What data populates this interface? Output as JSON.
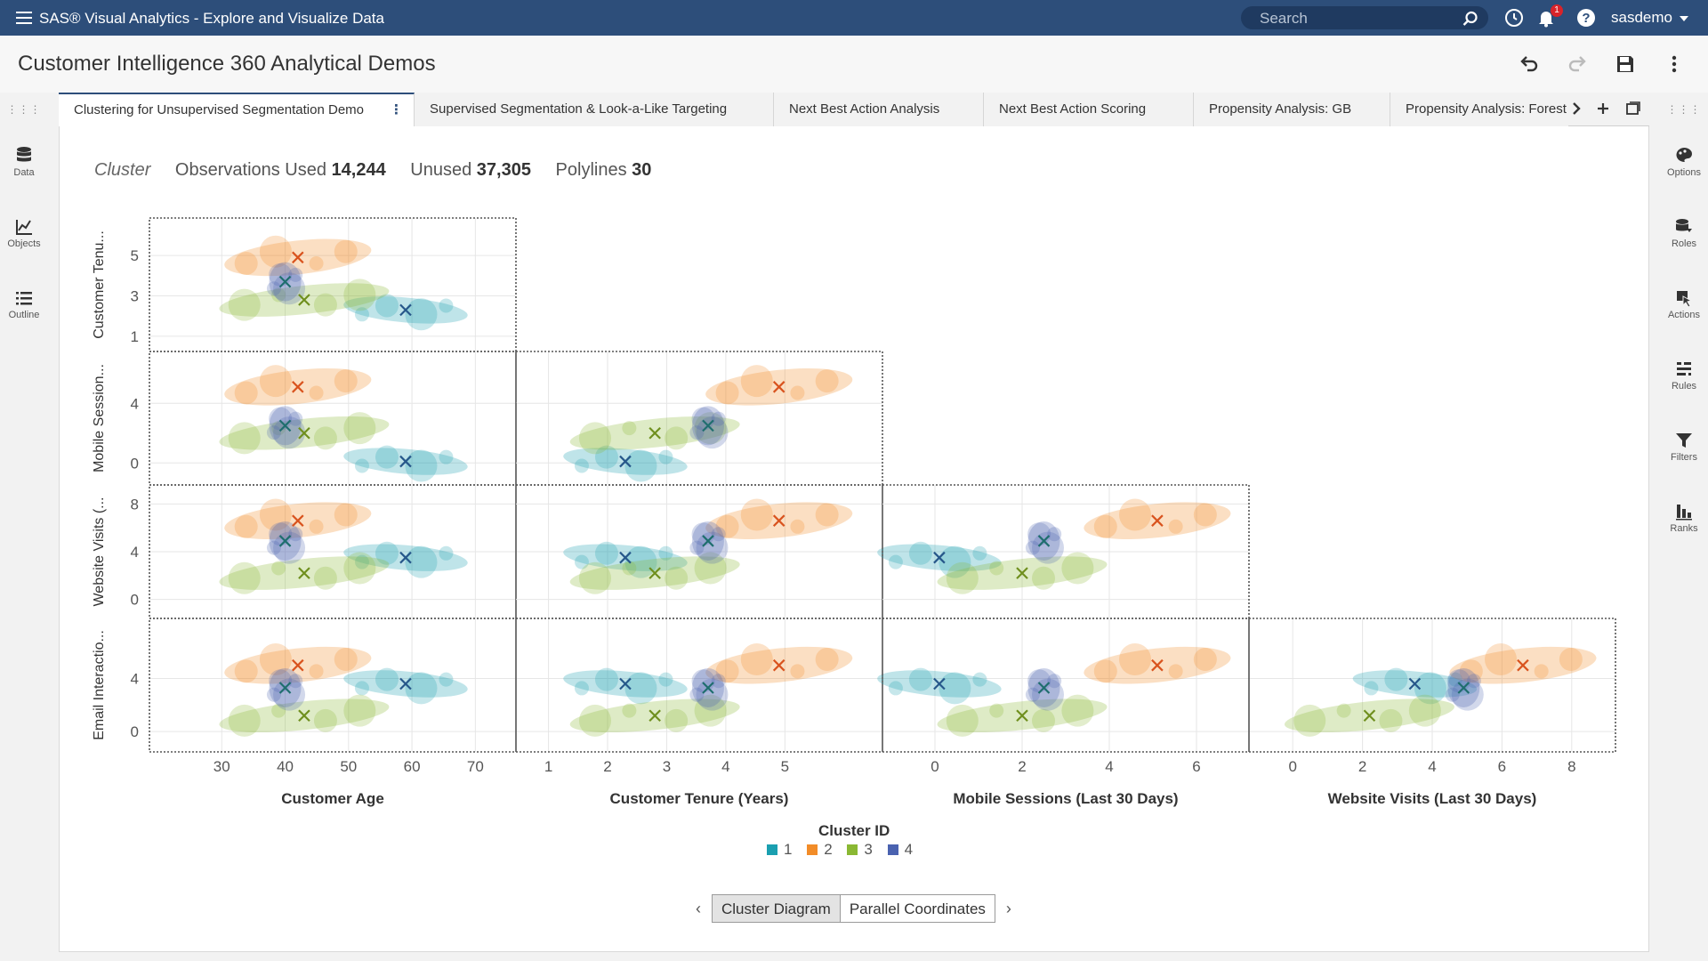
{
  "app": {
    "title": "SAS® Visual Analytics - Explore and Visualize Data",
    "search_placeholder": "Search",
    "notification_count": "1",
    "user": "sasdemo"
  },
  "report": {
    "title": "Customer Intelligence 360 Analytical Demos"
  },
  "left_rail": [
    {
      "label": "Data",
      "icon": "database-icon"
    },
    {
      "label": "Objects",
      "icon": "line-chart-icon"
    },
    {
      "label": "Outline",
      "icon": "list-icon"
    }
  ],
  "right_rail": [
    {
      "label": "Options",
      "icon": "palette-icon"
    },
    {
      "label": "Roles",
      "icon": "roles-icon"
    },
    {
      "label": "Actions",
      "icon": "cursor-icon"
    },
    {
      "label": "Rules",
      "icon": "rules-icon"
    },
    {
      "label": "Filters",
      "icon": "filter-icon"
    },
    {
      "label": "Ranks",
      "icon": "ranks-icon"
    }
  ],
  "tabs": [
    {
      "label": "Clustering for Unsupervised Segmentation Demo",
      "active": true
    },
    {
      "label": "Supervised Segmentation & Look-a-Like Targeting",
      "active": false
    },
    {
      "label": "Next Best Action Analysis",
      "active": false
    },
    {
      "label": "Next Best Action Scoring",
      "active": false
    },
    {
      "label": "Propensity Analysis: GB",
      "active": false
    },
    {
      "label": "Propensity Analysis: Forest",
      "active": false
    }
  ],
  "stats": {
    "label": "Cluster",
    "observations_used_label": "Observations Used",
    "observations_used": "14,244",
    "unused_label": "Unused",
    "unused": "37,305",
    "polylines_label": "Polylines",
    "polylines": "30"
  },
  "colors": {
    "cluster1": "#1a9fb0",
    "cluster2": "#f28c28",
    "cluster3": "#8ab833",
    "cluster4": "#4a62b0",
    "topbar": "#2d4e7a"
  },
  "chart_data": {
    "type": "scatter",
    "title": "",
    "variables": [
      {
        "name": "Customer Age",
        "short": "Customer Age",
        "range": [
          20,
          75
        ],
        "ticks": [
          30,
          40,
          50,
          60,
          70
        ]
      },
      {
        "name": "Customer Tenure (Years)",
        "short": "Customer Tenu...",
        "range": [
          0.6,
          6.5
        ],
        "ticks": [
          1,
          2,
          3,
          4,
          5
        ],
        "row_ticks": [
          1,
          3,
          5
        ]
      },
      {
        "name": "Mobile Sessions (Last 30 Days)",
        "short": "Mobile Session...",
        "range": [
          -1,
          7
        ],
        "ticks": [
          0,
          2,
          4,
          6
        ],
        "row_ticks": [
          0,
          4
        ]
      },
      {
        "name": "Website Visits (Last 30 Days)",
        "short": "Website Visits (...",
        "range": [
          -1,
          9
        ],
        "ticks": [
          0,
          2,
          4,
          6,
          8
        ],
        "row_ticks": [
          0,
          4,
          8
        ]
      },
      {
        "name": "Email Interactions",
        "short": "Email Interactio...",
        "range": [
          -1,
          8
        ],
        "row_ticks": [
          0,
          4
        ]
      }
    ],
    "legend": {
      "title": "Cluster ID",
      "items": [
        "1",
        "2",
        "3",
        "4"
      ],
      "placement": "bottom"
    },
    "clusters": [
      {
        "name": "1",
        "centroid": {
          "age": 59,
          "tenure": 2.3,
          "mobile": 0.1,
          "web": 3.5,
          "email": 3.6
        }
      },
      {
        "name": "2",
        "centroid": {
          "age": 42,
          "tenure": 4.9,
          "mobile": 5.1,
          "web": 6.6,
          "email": 5.0
        }
      },
      {
        "name": "3",
        "centroid": {
          "age": 43,
          "tenure": 2.8,
          "mobile": 2.0,
          "web": 2.2,
          "email": 1.2
        }
      },
      {
        "name": "4",
        "centroid": {
          "age": 40,
          "tenure": 3.7,
          "mobile": 2.5,
          "web": 4.9,
          "email": 3.3
        }
      }
    ]
  },
  "pager": {
    "options": [
      "Cluster Diagram",
      "Parallel Coordinates"
    ],
    "selected": "Cluster Diagram"
  }
}
